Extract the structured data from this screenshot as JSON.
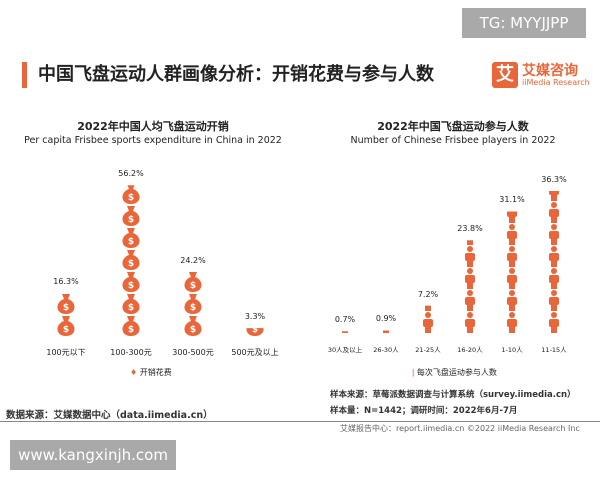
{
  "watermark_top": "TG: MYYJJPP",
  "watermark_bottom": "www.kangxinjh.com",
  "header": {
    "title": "中国飞盘运动人群画像分析：开销花费与参与人数",
    "logo_mark": "艾",
    "logo_cn": "艾媒咨询",
    "logo_en": "iiMedia Research"
  },
  "colors": {
    "accent": "#e8663a"
  },
  "chart_data": [
    {
      "type": "bar",
      "pictogram": "money-bag",
      "title": "2022年中国人均飞盘运动开销",
      "subtitle": "Per capita Frisbee sports expenditure in China in 2022",
      "categories": [
        "100元以下",
        "100-300元",
        "300-500元",
        "500元及以上"
      ],
      "values": [
        16.3,
        56.2,
        24.2,
        3.3
      ],
      "labels": [
        "16.3%",
        "56.2%",
        "24.2%",
        "3.3%"
      ],
      "legend": "开销花费",
      "legend_position": "bottom",
      "grid": false
    },
    {
      "type": "bar",
      "pictogram": "person",
      "title": "2022年中国飞盘运动参与人数",
      "subtitle": "Number of Chinese Frisbee players in 2022",
      "categories": [
        "30人及以上",
        "26-30人",
        "21-25人",
        "16-20人",
        "1-10人",
        "11-15人"
      ],
      "values": [
        0.7,
        0.9,
        7.2,
        23.8,
        31.1,
        36.3
      ],
      "labels": [
        "0.7%",
        "0.9%",
        "7.2%",
        "23.8%",
        "31.1%",
        "36.3%"
      ],
      "legend": "每次飞盘运动参与人数",
      "legend_position": "bottom",
      "grid": false
    }
  ],
  "sources": {
    "left": "数据来源：艾媒数据中心（data.iimedia.cn）",
    "right_1": "样本来源：草莓派数据调查与计算系统（survey.iimedia.cn）",
    "right_2": "样本量：N=1442；调研时间：2022年6月-7月"
  },
  "footer": "艾媒报告中心：report.iimedia.cn   ©2022  iiMedia Research  Inc"
}
